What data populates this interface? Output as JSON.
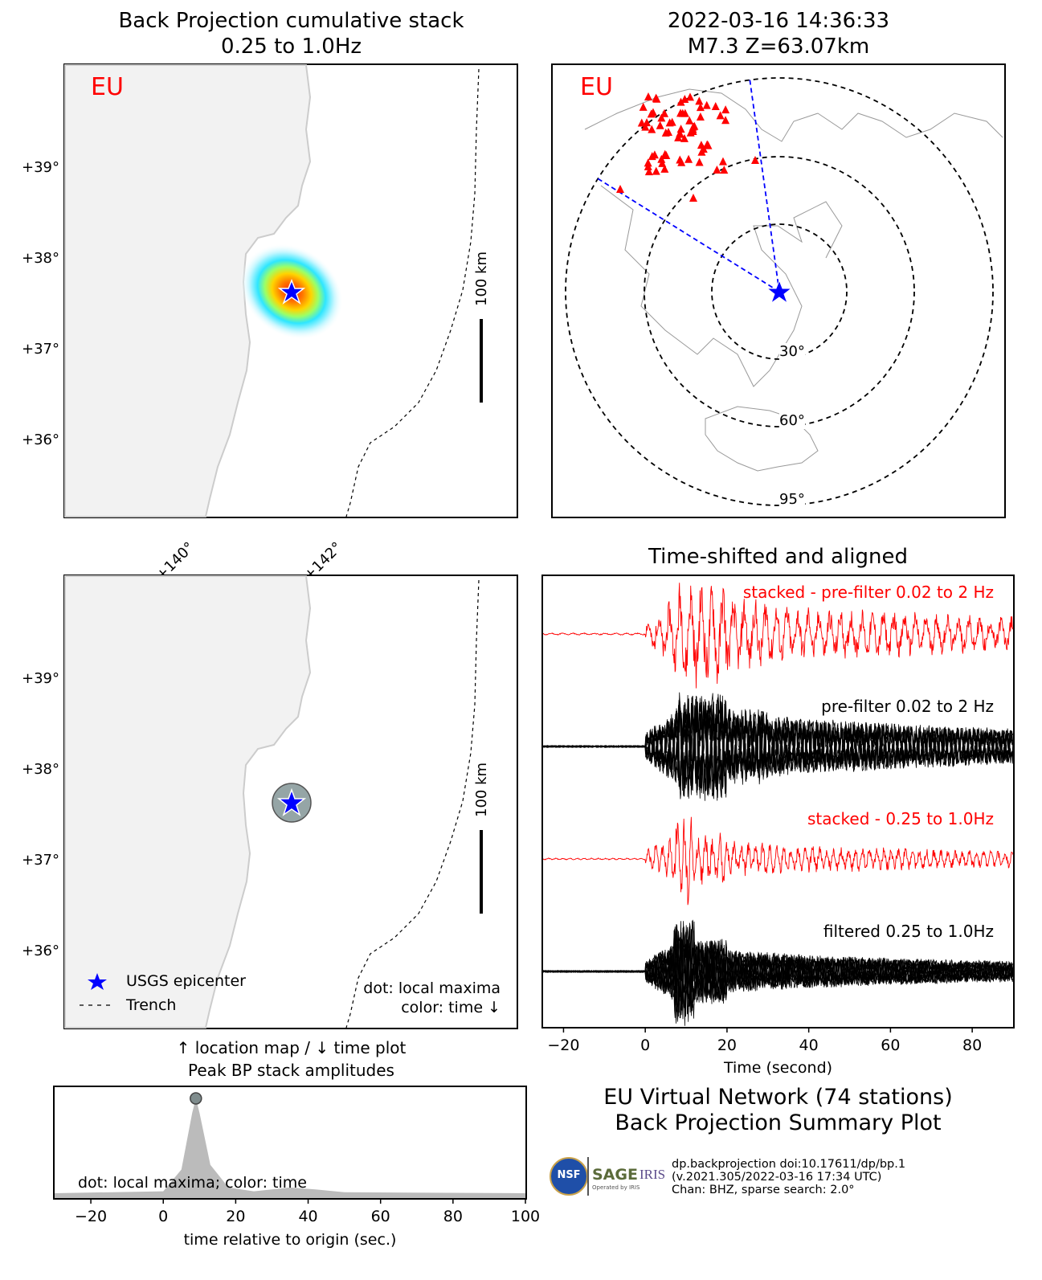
{
  "bp_map": {
    "title_line1": "Back Projection cumulative stack",
    "title_line2": "0.25 to 1.0Hz",
    "network_label": "EU",
    "lat_ticks": [
      "+39°",
      "+38°",
      "+37°",
      "+36°"
    ],
    "lon_ticks": [
      "+140°",
      "+142°"
    ],
    "scale_label": "100 km"
  },
  "station_map": {
    "title_line1": "2022-03-16 14:36:33",
    "title_line2": "M7.3 Z=63.07km",
    "network_label": "EU",
    "ring_labels": [
      "30°",
      "60°",
      "95°"
    ]
  },
  "location_map": {
    "lat_ticks": [
      "+39°",
      "+38°",
      "+37°",
      "+36°"
    ],
    "scale_label": "100 km",
    "legend": {
      "epicenter": "USGS epicenter",
      "trench": "Trench"
    },
    "note_line1": "dot: local maxima",
    "note_line2": "color: time ↓",
    "caption_line1": "↑ location map / ↓ time plot",
    "caption_line2": "Peak BP stack amplitudes"
  },
  "peak_plot": {
    "note": "dot: local maxima; color: time",
    "xlabel": "time relative to origin (sec.)",
    "x_ticks": [
      "−20",
      "0",
      "20",
      "40",
      "60",
      "80",
      "100"
    ]
  },
  "traces": {
    "title": "Time-shifted and aligned",
    "labels": [
      "stacked - pre-filter 0.02 to 2 Hz",
      "pre-filter 0.02 to 2 Hz",
      "stacked - 0.25 to 1.0Hz",
      "filtered 0.25 to 1.0Hz"
    ],
    "xlabel": "Time (second)",
    "x_ticks": [
      "−20",
      "0",
      "20",
      "40",
      "60",
      "80"
    ]
  },
  "summary": {
    "line1": "EU Virtual Network (74 stations)",
    "line2": "Back Projection Summary Plot"
  },
  "footer": {
    "line1": "dp.backprojection doi:10.17611/dp/bp.1",
    "line2": "(v.2021.305/2022-03-16 17:34 UTC)",
    "line3": "Chan: BHZ, sparse search: 2.0°",
    "logo_nsf": "NSF",
    "logo_sage": "SAGE",
    "logo_iris": "IRIS",
    "logo_operated": "Operated by IRIS"
  },
  "colors": {
    "stack_red": "#ff0000",
    "station_red": "#ff0000",
    "epicenter_blue": "#0000ff",
    "peak_gray": "#bbbbbb",
    "land": "#f2f2f2",
    "coast": "#cccccc"
  },
  "chart_data": [
    {
      "type": "heatmap",
      "title": "Back Projection cumulative stack 0.25 to 1.0Hz",
      "x_ticks": [
        "+140°",
        "+142°"
      ],
      "y_ticks": [
        "+39°",
        "+38°",
        "+37°",
        "+36°"
      ],
      "peak": {
        "lon": 141.6,
        "lat": 37.7
      }
    },
    {
      "type": "scatter",
      "title": "Peak BP stack amplitudes",
      "xlabel": "time relative to origin (sec.)",
      "xlim": [
        -30,
        100
      ],
      "local_maxima": [
        {
          "t": 9,
          "amplitude": 1.0
        }
      ],
      "envelope": [
        [
          -30,
          0
        ],
        [
          0,
          0.02
        ],
        [
          5,
          0.25
        ],
        [
          8,
          0.85
        ],
        [
          9,
          1.0
        ],
        [
          10,
          0.85
        ],
        [
          13,
          0.3
        ],
        [
          18,
          0.06
        ],
        [
          25,
          0.02
        ],
        [
          35,
          0.06
        ],
        [
          42,
          0.04
        ],
        [
          50,
          0.01
        ],
        [
          100,
          0
        ]
      ]
    },
    {
      "type": "line",
      "title": "Time-shifted and aligned",
      "xlabel": "Time (second)",
      "xlim": [
        -25,
        90
      ],
      "series": [
        {
          "name": "stacked - pre-filter 0.02 to 2 Hz"
        },
        {
          "name": "pre-filter 0.02 to 2 Hz"
        },
        {
          "name": "stacked - 0.25 to 1.0Hz"
        },
        {
          "name": "filtered 0.25 to 1.0Hz"
        }
      ]
    }
  ]
}
